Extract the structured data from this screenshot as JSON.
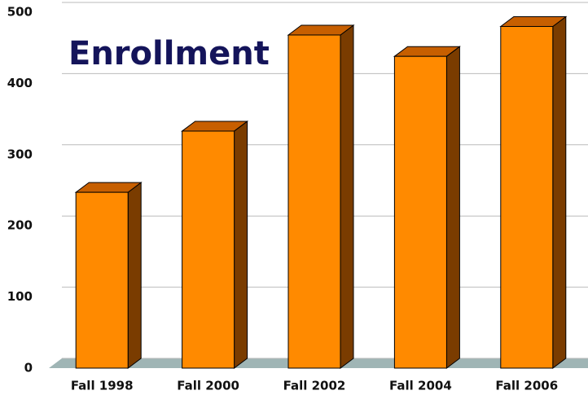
{
  "chart_data": {
    "type": "bar",
    "title": "Enrollment",
    "categories": [
      "Fall 1998",
      "Fall 2000",
      "Fall 2002",
      "Fall 2004",
      "Fall 2006"
    ],
    "values": [
      247,
      333,
      468,
      438,
      480
    ],
    "color": "#ff8a00",
    "ylim": [
      0,
      500
    ],
    "yticks": [
      0,
      100,
      200,
      300,
      400,
      500
    ],
    "grid": true
  }
}
